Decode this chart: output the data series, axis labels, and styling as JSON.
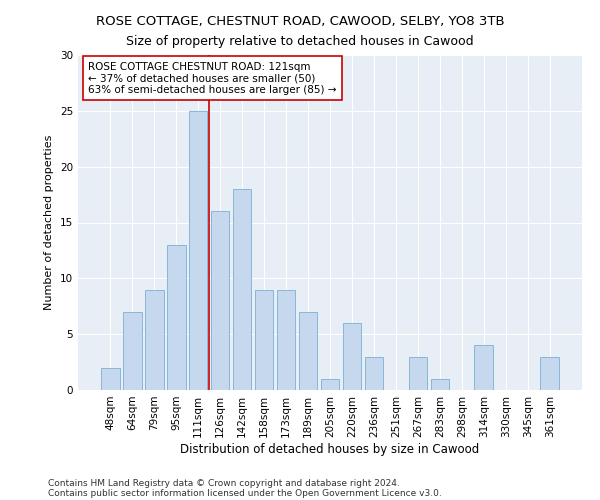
{
  "title": "ROSE COTTAGE, CHESTNUT ROAD, CAWOOD, SELBY, YO8 3TB",
  "subtitle": "Size of property relative to detached houses in Cawood",
  "xlabel": "Distribution of detached houses by size in Cawood",
  "ylabel": "Number of detached properties",
  "categories": [
    "48sqm",
    "64sqm",
    "79sqm",
    "95sqm",
    "111sqm",
    "126sqm",
    "142sqm",
    "158sqm",
    "173sqm",
    "189sqm",
    "205sqm",
    "220sqm",
    "236sqm",
    "251sqm",
    "267sqm",
    "283sqm",
    "298sqm",
    "314sqm",
    "330sqm",
    "345sqm",
    "361sqm"
  ],
  "values": [
    2,
    7,
    9,
    13,
    25,
    16,
    18,
    9,
    9,
    7,
    1,
    6,
    3,
    0,
    3,
    1,
    0,
    4,
    0,
    0,
    3
  ],
  "bar_color": "#c5d8ed",
  "bar_edge_color": "#7aafd4",
  "vline_x": 4.5,
  "vline_color": "#cc0000",
  "annotation_text": "ROSE COTTAGE CHESTNUT ROAD: 121sqm\n← 37% of detached houses are smaller (50)\n63% of semi-detached houses are larger (85) →",
  "annotation_box_color": "#ffffff",
  "annotation_box_edge_color": "#cc0000",
  "ylim": [
    0,
    30
  ],
  "yticks": [
    0,
    5,
    10,
    15,
    20,
    25,
    30
  ],
  "footer_line1": "Contains HM Land Registry data © Crown copyright and database right 2024.",
  "footer_line2": "Contains public sector information licensed under the Open Government Licence v3.0.",
  "title_fontsize": 9.5,
  "subtitle_fontsize": 9,
  "xlabel_fontsize": 8.5,
  "ylabel_fontsize": 8,
  "tick_fontsize": 7.5,
  "annotation_fontsize": 7.5,
  "footer_fontsize": 6.5,
  "background_color": "#ffffff",
  "plot_bg_color": "#e8eef5"
}
